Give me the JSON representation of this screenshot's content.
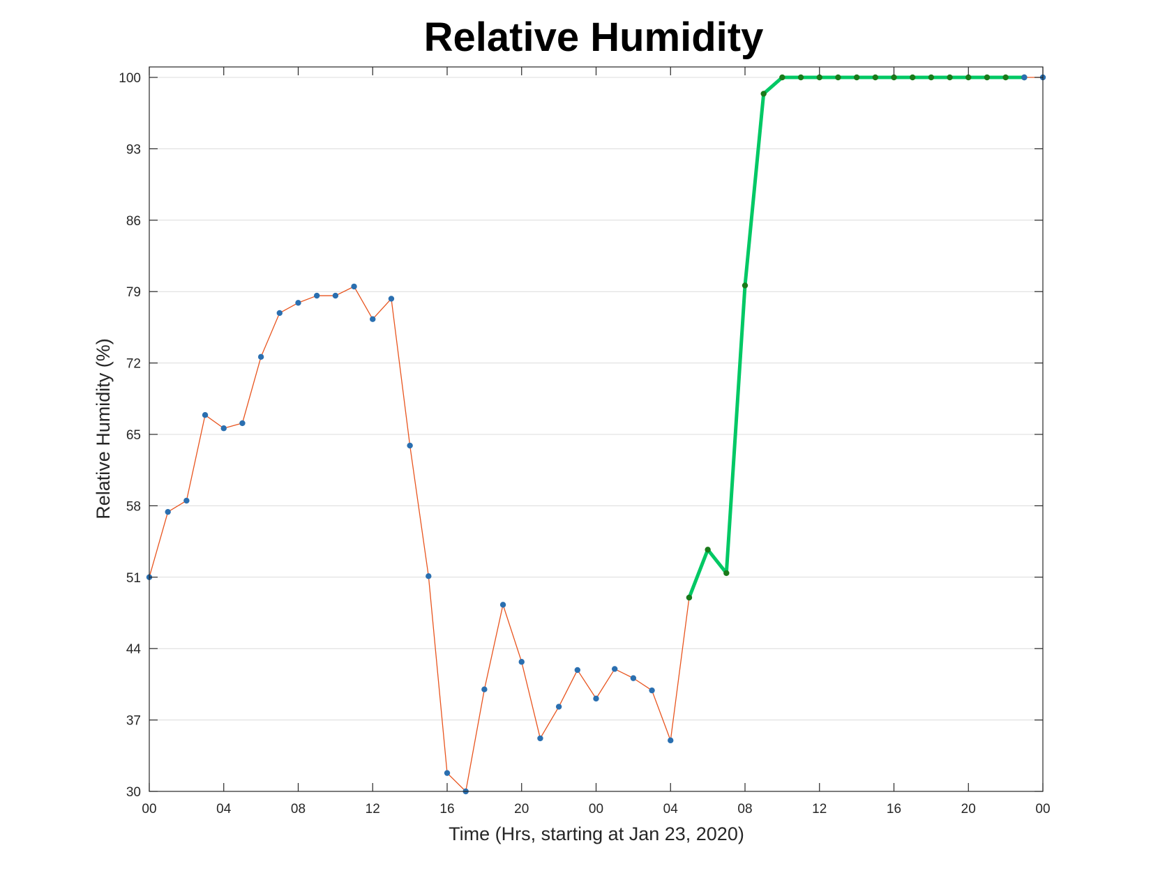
{
  "chart_data": {
    "type": "line",
    "title": "Relative Humidity",
    "xlabel": "Time (Hrs, starting at Jan 23, 2020)",
    "ylabel": "Relative Humidity (%)",
    "x_unit": "hours",
    "xlim": [
      0,
      48
    ],
    "ylim": [
      30,
      100
    ],
    "x_ticks": [
      0,
      4,
      8,
      12,
      16,
      20,
      24,
      28,
      32,
      36,
      40,
      44,
      48
    ],
    "x_tick_labels": [
      "00",
      "04",
      "08",
      "12",
      "16",
      "20",
      "00",
      "04",
      "08",
      "12",
      "16",
      "20",
      "00"
    ],
    "y_ticks": [
      30,
      37,
      44,
      51,
      58,
      65,
      72,
      79,
      86,
      93,
      100
    ],
    "y_tick_labels": [
      "30",
      "37",
      "44",
      "51",
      "58",
      "65",
      "72",
      "79",
      "86",
      "93",
      "100"
    ],
    "grid": true,
    "x": [
      0,
      1,
      2,
      3,
      4,
      5,
      6,
      7,
      8,
      9,
      10,
      11,
      12,
      13,
      14,
      15,
      16,
      17,
      18,
      19,
      20,
      21,
      22,
      23,
      24,
      25,
      26,
      27,
      28,
      29,
      30,
      31,
      32,
      33,
      34,
      35,
      36,
      37,
      38,
      39,
      40,
      41,
      42,
      43,
      44,
      45,
      46,
      47,
      48
    ],
    "series": [
      {
        "x": [
          0,
          1,
          2,
          3,
          4,
          5,
          6,
          7,
          8,
          9,
          10,
          11,
          12,
          13,
          14,
          15,
          16,
          17,
          18,
          19,
          20,
          21,
          22,
          23,
          24,
          25,
          26,
          27,
          28,
          29
        ],
        "values": [
          51,
          57.4,
          58.5,
          66.9,
          65.6,
          66.1,
          72.6,
          76.9,
          77.9,
          78.6,
          78.6,
          79.5,
          76.3,
          78.3,
          63.9,
          51.1,
          31.8,
          30,
          40,
          48.3,
          42.7,
          35.2,
          38.3,
          41.9,
          39.1,
          42,
          41.1,
          39.9,
          35,
          49
        ],
        "color": "#e8541e",
        "marker_color": "#2a6fb0",
        "line_width": "thin"
      },
      {
        "x": [
          29,
          30,
          31,
          32,
          33,
          34,
          35,
          36,
          37,
          38,
          39,
          40,
          41,
          42,
          43,
          44,
          45,
          46,
          47
        ],
        "values": [
          49,
          53.7,
          51.4,
          79.6,
          98.4,
          100,
          100,
          100,
          100,
          100,
          100,
          100,
          100,
          100,
          100,
          100,
          100,
          100,
          100
        ],
        "color": "#00c864",
        "marker_color": "#1a7a1a",
        "line_width": "thick"
      },
      {
        "x": [
          47,
          48
        ],
        "values": [
          100,
          100
        ],
        "color": "#e8541e",
        "marker_color": "#2a6fb0",
        "line_width": "thin"
      }
    ]
  }
}
